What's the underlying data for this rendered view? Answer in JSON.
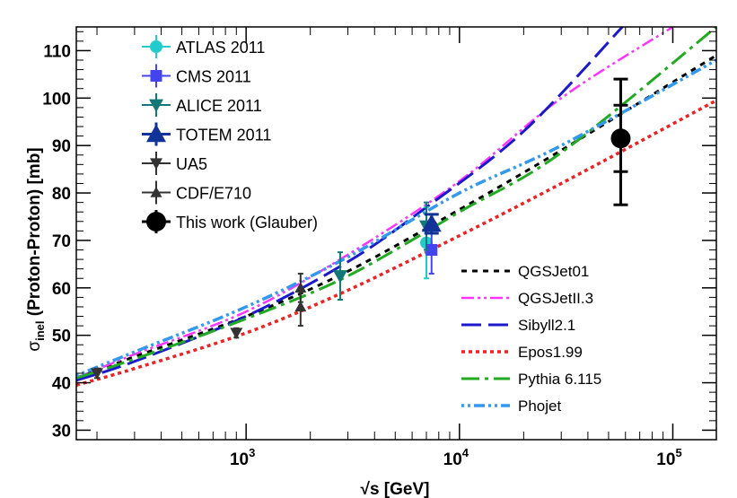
{
  "chart_data": {
    "type": "line",
    "title": "",
    "xlabel": "√s    [GeV]",
    "ylabel_main": "σ",
    "ylabel_sub": "inel",
    "ylabel_rest": " (Proton-Proton)    [mb]",
    "xscale": "log",
    "xlim": [
      160,
      160000
    ],
    "ylim": [
      28,
      115
    ],
    "x_ticks": [
      {
        "value": 1000,
        "base": "10",
        "exp": "3"
      },
      {
        "value": 10000,
        "base": "10",
        "exp": "4"
      },
      {
        "value": 100000,
        "base": "10",
        "exp": "5"
      }
    ],
    "y_ticks": [
      30,
      40,
      50,
      60,
      70,
      80,
      90,
      100,
      110
    ],
    "model_curves": [
      {
        "name": "QGSJet01",
        "color": "#000000",
        "dash": "6,6",
        "width": 3,
        "x": [
          160,
          300,
          1000,
          3000,
          10000,
          30000,
          160000
        ],
        "y": [
          41,
          45.5,
          54,
          63.5,
          76.5,
          89,
          109
        ]
      },
      {
        "name": "QGSJetII.3",
        "color": "#ff33ff",
        "dash": "14,4,3,4,3,4",
        "width": 2.5,
        "x": [
          160,
          300,
          1000,
          3000,
          10000,
          30000,
          100000,
          110000
        ],
        "y": [
          41,
          46,
          55,
          67,
          82.5,
          100,
          115,
          116
        ]
      },
      {
        "name": "Sibyll2.1",
        "color": "#1a1acc",
        "dash": "22,8",
        "width": 3,
        "x": [
          160,
          300,
          1000,
          3000,
          7000,
          20000,
          58000,
          60000
        ],
        "y": [
          40.5,
          44.5,
          54,
          65.5,
          77,
          93,
          115,
          116
        ]
      },
      {
        "name": "Epos1.99",
        "color": "#ee2222",
        "dash": "4,4",
        "width": 3.5,
        "x": [
          160,
          300,
          1000,
          3000,
          10000,
          30000,
          160000
        ],
        "y": [
          39.5,
          43,
          50.5,
          59.5,
          71,
          82,
          99.5
        ]
      },
      {
        "name": "Pythia 6.115",
        "color": "#22aa22",
        "dash": "20,6,4,6",
        "width": 3,
        "x": [
          160,
          300,
          1000,
          3000,
          10000,
          30000,
          160000
        ],
        "y": [
          41,
          45,
          53.5,
          62.5,
          76,
          88.5,
          115
        ]
      },
      {
        "name": "Phojet",
        "color": "#3399ee",
        "dash": "3,4,3,4,12,4",
        "width": 3.5,
        "x": [
          160,
          300,
          1000,
          3000,
          10000,
          30000,
          160000
        ],
        "y": [
          41.5,
          46.5,
          56,
          66.5,
          80,
          90,
          108
        ]
      }
    ],
    "data_points": [
      {
        "name": "ATLAS 2011",
        "color": "#22cccc",
        "marker": "circle",
        "size": 14,
        "points": [
          {
            "x": 7000,
            "y": 69.5,
            "ylo": 62,
            "yhi": 77
          }
        ]
      },
      {
        "name": "CMS 2011",
        "color": "#4444ee",
        "marker": "square",
        "size": 13,
        "points": [
          {
            "x": 7400,
            "y": 68,
            "ylo": 63,
            "yhi": 73
          }
        ]
      },
      {
        "name": "ALICE 2011",
        "color": "#117777",
        "marker": "tri-down",
        "size": 16,
        "points": [
          {
            "x": 2760,
            "y": 62.5,
            "ylo": 57.5,
            "yhi": 67.5
          },
          {
            "x": 7000,
            "y": 73,
            "ylo": 68,
            "yhi": 78
          }
        ]
      },
      {
        "name": "TOTEM 2011",
        "color": "#113399",
        "marker": "tri-up",
        "size": 22,
        "points": [
          {
            "x": 7400,
            "y": 73.5,
            "ylo": 71.5,
            "yhi": 75.5
          }
        ]
      },
      {
        "name": "UA5",
        "color": "#333333",
        "marker": "tri-down",
        "size": 14,
        "points": [
          {
            "x": 200,
            "y": 42,
            "ylo": 41,
            "yhi": 43
          },
          {
            "x": 900,
            "y": 50.5,
            "ylo": 49.5,
            "yhi": 51.5
          }
        ]
      },
      {
        "name": "CDF/E710",
        "color": "#333333",
        "marker": "tri-up",
        "size": 13,
        "points": [
          {
            "x": 1800,
            "y": 60,
            "ylo": 57,
            "yhi": 63
          },
          {
            "x": 1800,
            "y": 56,
            "ylo": 52,
            "yhi": 60
          }
        ]
      },
      {
        "name": "This work (Glauber)",
        "color": "#000000",
        "marker": "circle",
        "size": 22,
        "points": [
          {
            "x": 57000,
            "y": 91.5,
            "ylo": 77.5,
            "yhi": 104,
            "inner_lo": 84.5,
            "inner_hi": 98.5
          }
        ]
      }
    ],
    "legend_left": [
      "ATLAS 2011",
      "CMS 2011",
      "ALICE 2011",
      "TOTEM 2011",
      "UA5",
      "CDF/E710",
      "This work (Glauber)"
    ],
    "legend_right": [
      "QGSJet01",
      "QGSJetII.3",
      "Sibyll2.1",
      "Epos1.99",
      "Pythia 6.115",
      "Phojet"
    ]
  }
}
